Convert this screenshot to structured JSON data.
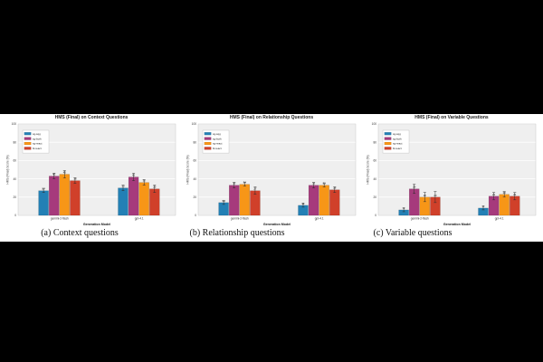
{
  "figure": {
    "background": "#000000",
    "strip_background": "#ffffff",
    "plot_background": "#efefef",
    "gridline_color": "#ffffff",
    "border_color": "#c8c8c8",
    "errorbar_color": "#2b2b2b",
    "text_color": "#333333"
  },
  "captions": [
    "(a) Context questions",
    "(b) Relationship questions",
    "(c) Variable questions"
  ],
  "chart_data": [
    {
      "type": "bar",
      "title": "HMS (Final) on Context Questions",
      "xlabel": "Generation Model",
      "ylabel": "HMS (Final) Score (%)",
      "ylim": [
        0,
        100
      ],
      "yticks": [
        0,
        20,
        40,
        60,
        80,
        100
      ],
      "grid": true,
      "legend_position": "upper-left",
      "categories": [
        "gemini-2-flash",
        "gpt-4.1"
      ],
      "series": [
        {
          "name": "sg-sqg",
          "color": "#2380b5",
          "values": [
            27,
            30
          ],
          "errors": [
            2,
            3
          ]
        },
        {
          "name": "sg-both",
          "color": "#a63a7c",
          "values": [
            43,
            42
          ],
          "errors": [
            3,
            4
          ]
        },
        {
          "name": "sg-react",
          "color": "#f79617",
          "values": [
            45,
            36
          ],
          "errors": [
            4,
            3
          ]
        },
        {
          "name": "bl-react",
          "color": "#d0402a",
          "values": [
            38,
            29
          ],
          "errors": [
            3,
            4
          ]
        }
      ]
    },
    {
      "type": "bar",
      "title": "HMS (Final) on Relationship Questions",
      "xlabel": "Generation Model",
      "ylabel": "HMS (Final) Score (%)",
      "ylim": [
        0,
        100
      ],
      "yticks": [
        0,
        20,
        40,
        60,
        80,
        100
      ],
      "grid": true,
      "legend_position": "upper-left",
      "categories": [
        "gemini-2-flash",
        "gpt-4.1"
      ],
      "series": [
        {
          "name": "sg-sqg",
          "color": "#2380b5",
          "values": [
            14,
            11
          ],
          "errors": [
            2,
            2
          ]
        },
        {
          "name": "sg-both",
          "color": "#a63a7c",
          "values": [
            33,
            33
          ],
          "errors": [
            3,
            3
          ]
        },
        {
          "name": "sg-react",
          "color": "#f79617",
          "values": [
            34,
            33
          ],
          "errors": [
            2,
            2
          ]
        },
        {
          "name": "bl-react",
          "color": "#d0402a",
          "values": [
            27,
            28
          ],
          "errors": [
            4,
            3
          ]
        }
      ]
    },
    {
      "type": "bar",
      "title": "HMS (Final) on Variable Questions",
      "xlabel": "Generation Model",
      "ylabel": "HMS (Final) Score (%)",
      "ylim": [
        0,
        100
      ],
      "yticks": [
        0,
        20,
        40,
        60,
        80,
        100
      ],
      "grid": true,
      "legend_position": "upper-left",
      "categories": [
        "gemini-2-flash",
        "gpt-4.1"
      ],
      "series": [
        {
          "name": "sg-sqg",
          "color": "#2380b5",
          "values": [
            6,
            8
          ],
          "errors": [
            2,
            2
          ]
        },
        {
          "name": "sg-both",
          "color": "#a63a7c",
          "values": [
            29,
            21
          ],
          "errors": [
            5,
            4
          ]
        },
        {
          "name": "sg-react",
          "color": "#f79617",
          "values": [
            20,
            23
          ],
          "errors": [
            5,
            3
          ]
        },
        {
          "name": "bl-react",
          "color": "#d0402a",
          "values": [
            20,
            21
          ],
          "errors": [
            6,
            4
          ]
        }
      ]
    }
  ]
}
